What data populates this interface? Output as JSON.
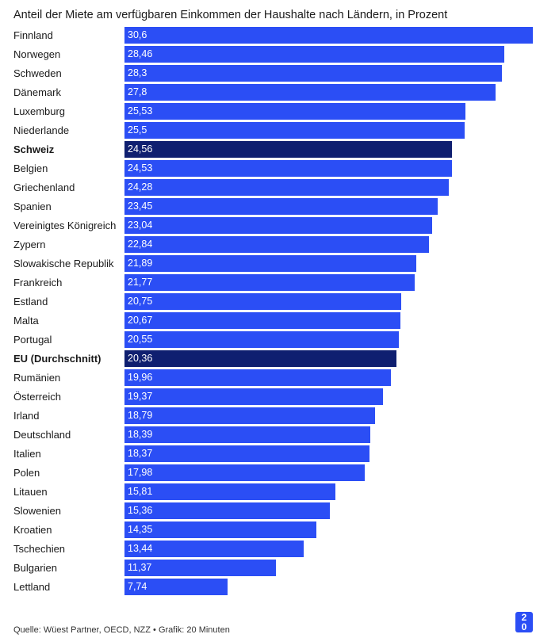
{
  "colors": {
    "bar": "#2b4ef5",
    "bar_highlight": "#0f1f70",
    "text": "#1a1a1a",
    "value_text": "#ffffff"
  },
  "chart_data": {
    "type": "bar",
    "orientation": "horizontal",
    "title": "Anteil der Miete am verfügbaren Einkommen der Haushalte nach Ländern, in Prozent",
    "categories": [
      "Finnland",
      "Norwegen",
      "Schweden",
      "Dänemark",
      "Luxemburg",
      "Niederlande",
      "Schweiz",
      "Belgien",
      "Griechenland",
      "Spanien",
      "Vereinigtes Königreich",
      "Zypern",
      "Slowakische Republik",
      "Frankreich",
      "Estland",
      "Malta",
      "Portugal",
      "EU (Durchschnitt)",
      "Rumänien",
      "Österreich",
      "Irland",
      "Deutschland",
      "Italien",
      "Polen",
      "Litauen",
      "Slowenien",
      "Kroatien",
      "Tschechien",
      "Bulgarien",
      "Lettland"
    ],
    "values": [
      30.6,
      28.46,
      28.3,
      27.8,
      25.53,
      25.5,
      24.56,
      24.53,
      24.28,
      23.45,
      23.04,
      22.84,
      21.89,
      21.77,
      20.75,
      20.67,
      20.55,
      20.36,
      19.96,
      19.37,
      18.79,
      18.39,
      18.37,
      17.98,
      15.81,
      15.36,
      14.35,
      13.44,
      11.37,
      7.74
    ],
    "value_labels": [
      "30,6",
      "28,46",
      "28,3",
      "27,8",
      "25,53",
      "25,5",
      "24,56",
      "24,53",
      "24,28",
      "23,45",
      "23,04",
      "22,84",
      "21,89",
      "21,77",
      "20,75",
      "20,67",
      "20,55",
      "20,36",
      "19,96",
      "19,37",
      "18,79",
      "18,39",
      "18,37",
      "17,98",
      "15,81",
      "15,36",
      "14,35",
      "13,44",
      "11,37",
      "7,74"
    ],
    "highlighted": [
      "Schweiz",
      "EU (Durchschnitt)"
    ],
    "xlim": [
      0,
      30.6
    ],
    "grid": false,
    "legend": "none"
  },
  "footer": {
    "source": "Quelle: Wüest Partner, OECD, NZZ • Grafik: 20 Minuten",
    "logo_text": "20"
  }
}
